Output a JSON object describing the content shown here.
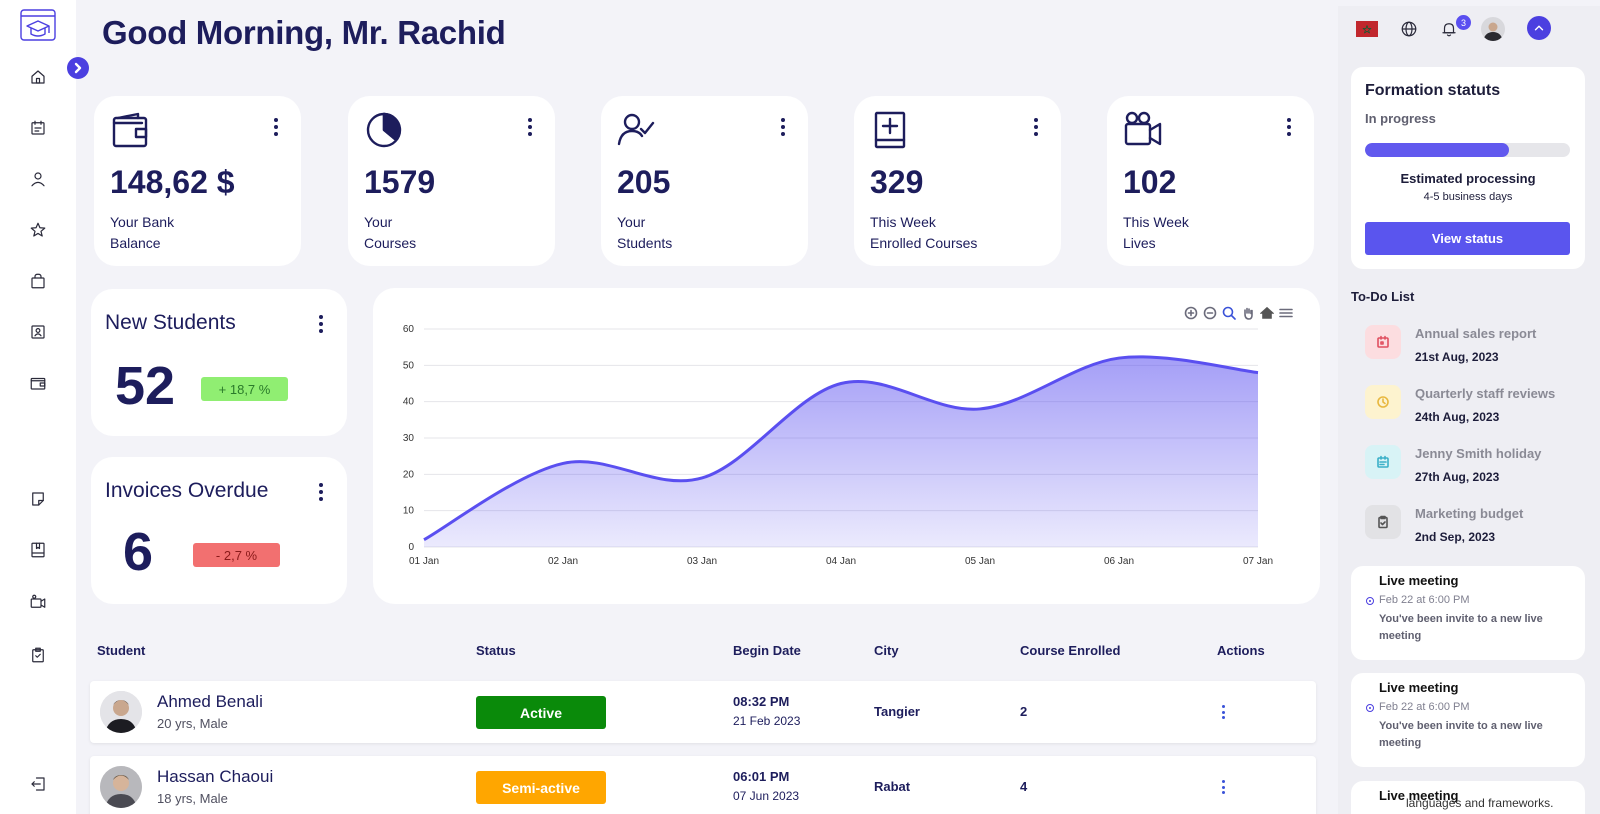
{
  "greeting": "Good Morning, Mr. Rachid",
  "stats": [
    {
      "icon": "wallet-icon",
      "value": "148,62 $",
      "label_line1": "Your Bank",
      "label_line2": "Balance"
    },
    {
      "icon": "pie-chart-icon",
      "value": "1579",
      "label_line1": "Your",
      "label_line2": "Courses"
    },
    {
      "icon": "user-check-icon",
      "value": "205",
      "label_line1": "Your",
      "label_line2": "Students"
    },
    {
      "icon": "book-plus-icon",
      "value": "329",
      "label_line1": "This Week",
      "label_line2": "Enrolled Courses"
    },
    {
      "icon": "video-camera-icon",
      "value": "102",
      "label_line1": "This Week",
      "label_line2": "Lives"
    }
  ],
  "new_students": {
    "title": "New Students",
    "value": "52",
    "change": "+ 18,7 %",
    "change_color": "#90ee72"
  },
  "invoices_overdue": {
    "title": "Invoices Overdue",
    "value": "6",
    "change": "- 2,7 %",
    "change_color": "#f27070"
  },
  "chart_data": {
    "type": "area",
    "x": [
      "01 Jan",
      "02 Jan",
      "03 Jan",
      "04 Jan",
      "05 Jan",
      "06 Jan",
      "07 Jan"
    ],
    "values": [
      2,
      23,
      19,
      45,
      38,
      52,
      48
    ],
    "yticks": [
      "0",
      "10",
      "20",
      "30",
      "40",
      "50",
      "60"
    ],
    "ylim": [
      0,
      60
    ],
    "grid": true,
    "color": "#5a4ff0"
  },
  "table": {
    "headers": {
      "student": "Student",
      "status": "Status",
      "begin_date": "Begin Date",
      "city": "City",
      "course": "Course Enrolled",
      "actions": "Actions"
    },
    "rows": [
      {
        "name": "Ahmed Benali",
        "meta": "20 yrs, Male",
        "status": "Active",
        "status_color": "#0a8a0a",
        "time": "08:32 PM",
        "date": "21 Feb 2023",
        "city": "Tangier",
        "courses": "2"
      },
      {
        "name": "Hassan Chaoui",
        "meta": "18 yrs, Male",
        "status": "Semi-active",
        "status_color": "#ffa600",
        "time": "06:01 PM",
        "date": "07 Jun 2023",
        "city": "Rabat",
        "courses": "4"
      }
    ]
  },
  "topbar": {
    "notification_count": "3"
  },
  "formation": {
    "title": "Formation statuts",
    "state": "In progress",
    "progress": 0.7,
    "estimate_title": "Estimated processing",
    "estimate_value": "4-5 business days",
    "button": "View status"
  },
  "todo": {
    "title": "To-Do List",
    "items": [
      {
        "name": "Annual sales report",
        "date": "21st Aug, 2023",
        "icon": "calendar-icon",
        "bg": "#fcdde0",
        "color": "#e05060"
      },
      {
        "name": "Quarterly staff reviews",
        "date": "24th Aug, 2023",
        "icon": "clock-icon",
        "bg": "#fdf3cf",
        "color": "#e8b840"
      },
      {
        "name": "Jenny Smith holiday",
        "date": "27th Aug, 2023",
        "icon": "calendar-icon",
        "bg": "#d8f3f6",
        "color": "#3ab0c8"
      },
      {
        "name": "Marketing budget",
        "date": "2nd Sep, 2023",
        "icon": "clipboard-icon",
        "bg": "#e2e2e5",
        "color": "#555"
      }
    ]
  },
  "meetings": [
    {
      "title": "Live meeting",
      "date": "Feb 22 at 6:00 PM",
      "text": "You've been invite to a new live meeting"
    },
    {
      "title": "Live meeting",
      "date": "Feb 22 at 6:00 PM",
      "text": "You've been invite to a new live meeting"
    },
    {
      "title": "Live meeting"
    }
  ],
  "overflow_text": "languages and frameworks."
}
